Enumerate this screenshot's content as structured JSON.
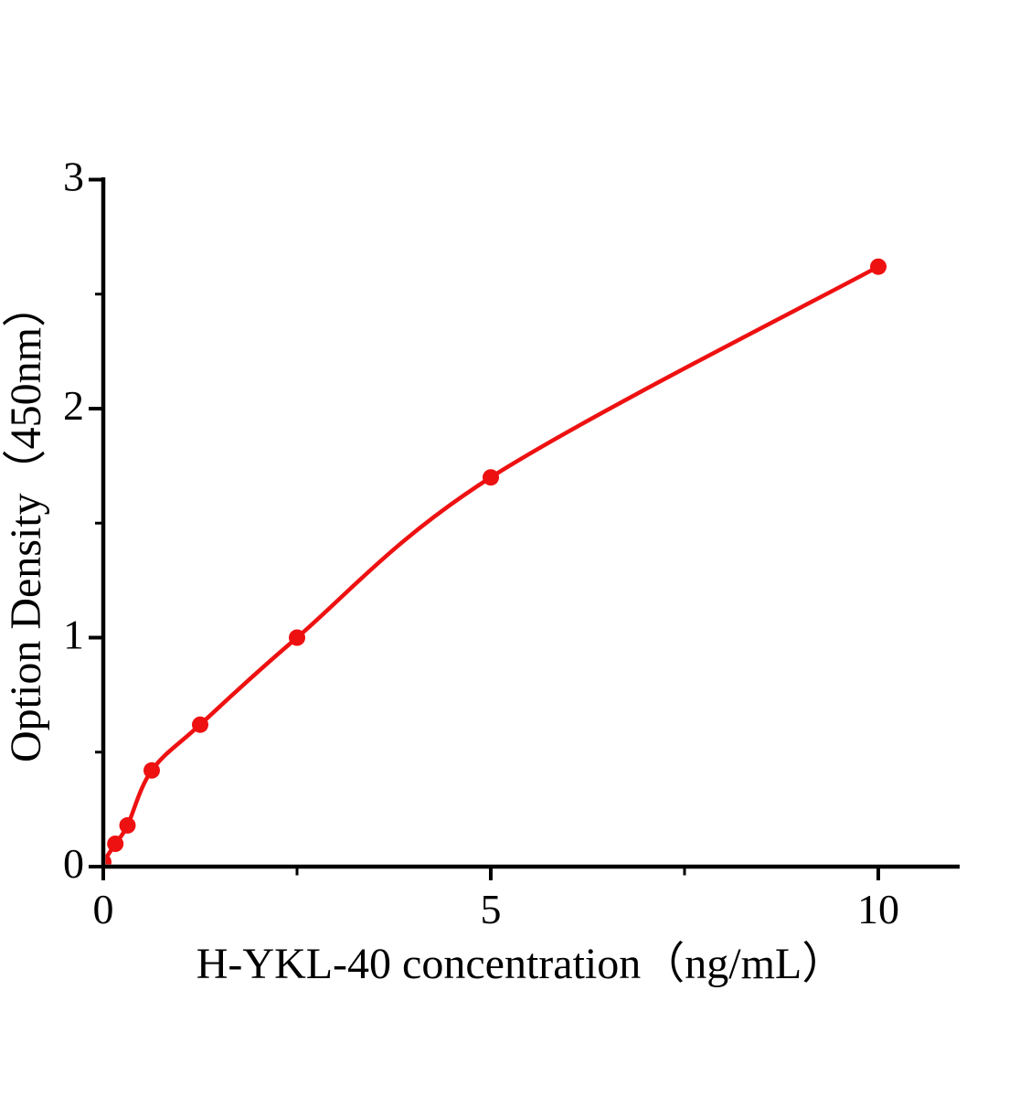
{
  "figure": {
    "background_color": "#ffffff",
    "axis_color": "#000000",
    "accent_color": "#ee1111"
  },
  "chart_data": {
    "type": "scatter",
    "title": "",
    "xlabel": "H-YKL-40 concentration（ng/mL）",
    "ylabel": "Option Density（450nm）",
    "grid": false,
    "legend": "none",
    "x_axis": {
      "min": 0,
      "max": 11.05,
      "major_ticks": [
        {
          "value": 0,
          "label": "0"
        },
        {
          "value": 5,
          "label": "5"
        },
        {
          "value": 10,
          "label": "10"
        }
      ],
      "minor_ticks": [
        2.5,
        7.5
      ]
    },
    "y_axis": {
      "min": 0,
      "max": 3,
      "major_ticks": [
        {
          "value": 0,
          "label": "0"
        },
        {
          "value": 1,
          "label": "1"
        },
        {
          "value": 2,
          "label": "2"
        },
        {
          "value": 3,
          "label": "3"
        }
      ],
      "minor_ticks": [
        0.5,
        1.5,
        2.5
      ]
    },
    "series": [
      {
        "color": "#ee1111",
        "marker": "circle",
        "line_style": "smooth",
        "points": [
          {
            "x": 0,
            "y": 0.02
          },
          {
            "x": 0.156,
            "y": 0.1
          },
          {
            "x": 0.3125,
            "y": 0.18
          },
          {
            "x": 0.625,
            "y": 0.42
          },
          {
            "x": 1.25,
            "y": 0.62
          },
          {
            "x": 2.5,
            "y": 1.0
          },
          {
            "x": 5,
            "y": 1.7
          },
          {
            "x": 10,
            "y": 2.62
          }
        ]
      }
    ]
  }
}
